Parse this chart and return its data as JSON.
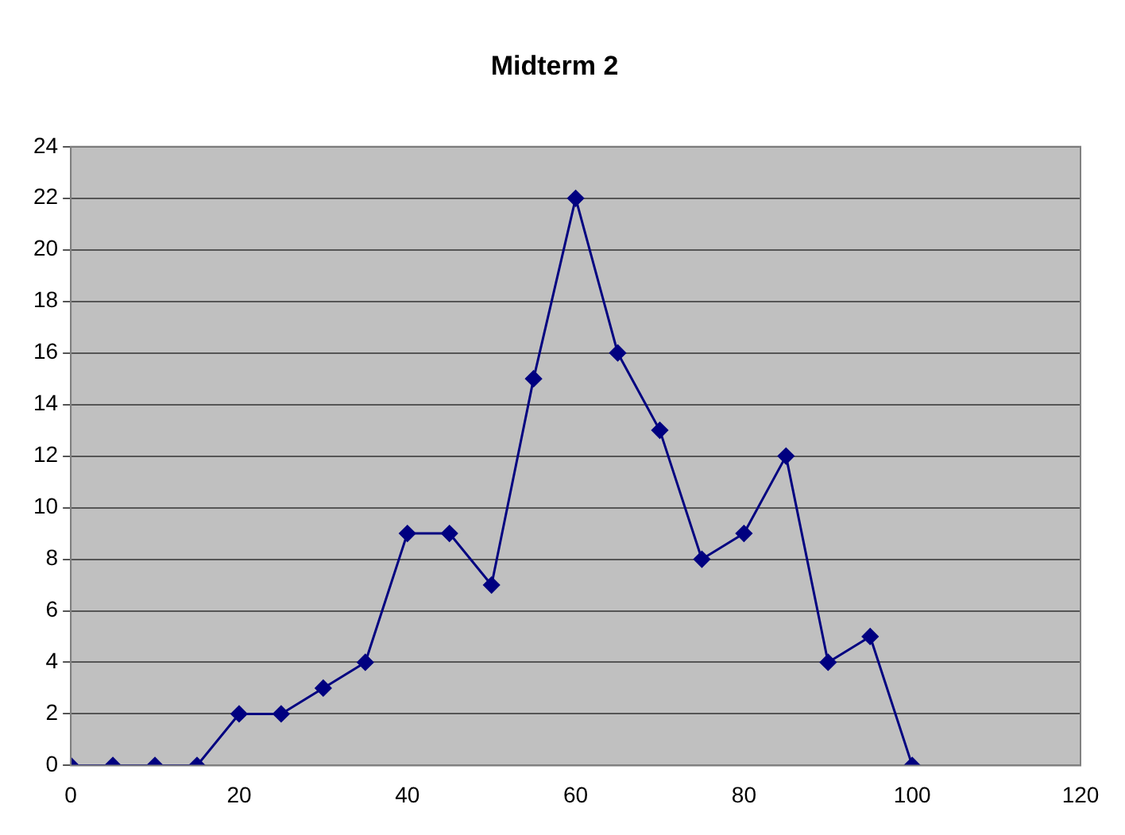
{
  "chart_data": {
    "type": "line",
    "title": "Midterm 2",
    "x": [
      0,
      5,
      10,
      15,
      20,
      25,
      30,
      35,
      40,
      45,
      50,
      55,
      60,
      65,
      70,
      75,
      80,
      85,
      90,
      95,
      100
    ],
    "series": [
      {
        "color": "#000080",
        "values": [
          0,
          0,
          0,
          0,
          2,
          2,
          3,
          4,
          9,
          9,
          7,
          15,
          22,
          16,
          13,
          8,
          9,
          12,
          4,
          5,
          0
        ]
      }
    ],
    "xlim": [
      0,
      120
    ],
    "xticks": [
      0,
      20,
      40,
      60,
      80,
      100,
      120
    ],
    "ylim": [
      0,
      24
    ],
    "yticks": [
      0,
      2,
      4,
      6,
      8,
      10,
      12,
      14,
      16,
      18,
      20,
      22,
      24
    ],
    "grid": "y",
    "legend": false,
    "marker": "diamond",
    "line_style": "solid"
  }
}
